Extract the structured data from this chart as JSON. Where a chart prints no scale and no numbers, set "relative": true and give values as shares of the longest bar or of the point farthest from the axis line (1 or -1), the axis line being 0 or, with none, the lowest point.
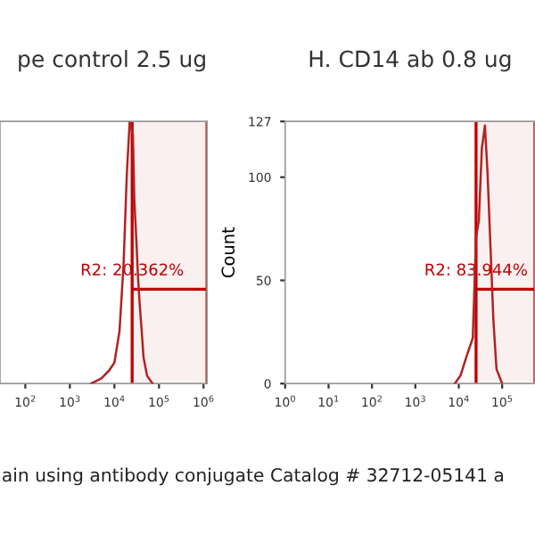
{
  "chart_data": [
    {
      "type": "line",
      "title": "pe control 2.5 ug",
      "relative": true,
      "log": "x",
      "tick_labels": "x",
      "x": [
        3000,
        5100,
        7600,
        10000,
        13000,
        16000,
        19000,
        22000,
        26000,
        28000,
        31000,
        34000,
        37000,
        41000,
        45000,
        54000,
        72000
      ],
      "series": [
        {
          "color": "#b22222",
          "values": [
            0,
            0.02,
            0.05,
            0.08,
            0.2,
            0.45,
            0.8,
            1,
            0.95,
            0.7,
            0.55,
            0.4,
            0.3,
            0.2,
            0.1,
            0.03,
            0
          ]
        }
      ],
      "xlim": [
        27,
        1200000
      ],
      "xticks": [
        {
          "value": 100,
          "label": "10$^{2}$"
        },
        {
          "value": 1000,
          "label": "10$^{3}$"
        },
        {
          "value": 10000,
          "label": "10$^{4}$"
        },
        {
          "value": 100000,
          "label": "10$^{5}$"
        },
        {
          "value": 1000000,
          "label": "10$^{6}$"
        }
      ],
      "bands": [
        {
          "axis": "x",
          "from": 25000,
          "to": 1200000,
          "label": "R2: 20.362%",
          "color": "#c00000"
        }
      ],
      "annotations": [
        "ain using antibody conjugate Catalog # 32712-05141 a"
      ]
    },
    {
      "type": "line",
      "title": "H. CD14 ab 0.8 ug",
      "ylabel": "Count",
      "log": "x",
      "x": [
        8100,
        11000,
        15000,
        21000,
        25000,
        29000,
        34000,
        40000,
        46000,
        54000,
        63000,
        74000,
        100000
      ],
      "series": [
        {
          "color": "#b22222",
          "values": [
            0,
            4,
            13,
            22,
            71,
            79,
            114,
            125,
            102,
            65,
            30,
            7,
            0
          ]
        }
      ],
      "xlim": [
        1,
        570000
      ],
      "ylim": [
        0,
        127
      ],
      "yticks": [
        0,
        50,
        100,
        127
      ],
      "xticks": [
        {
          "value": 1,
          "label": "10$^{0}$"
        },
        {
          "value": 10,
          "label": "10$^{1}$"
        },
        {
          "value": 100,
          "label": "10$^{2}$"
        },
        {
          "value": 1000,
          "label": "10$^{3}$"
        },
        {
          "value": 10000,
          "label": "10$^{4}$"
        },
        {
          "value": 100000,
          "label": "10$^{5}$"
        }
      ],
      "bands": [
        {
          "axis": "x",
          "from": 25000,
          "to": 570000,
          "label": "R2: 83.944%",
          "color": "#c00000"
        }
      ]
    }
  ]
}
